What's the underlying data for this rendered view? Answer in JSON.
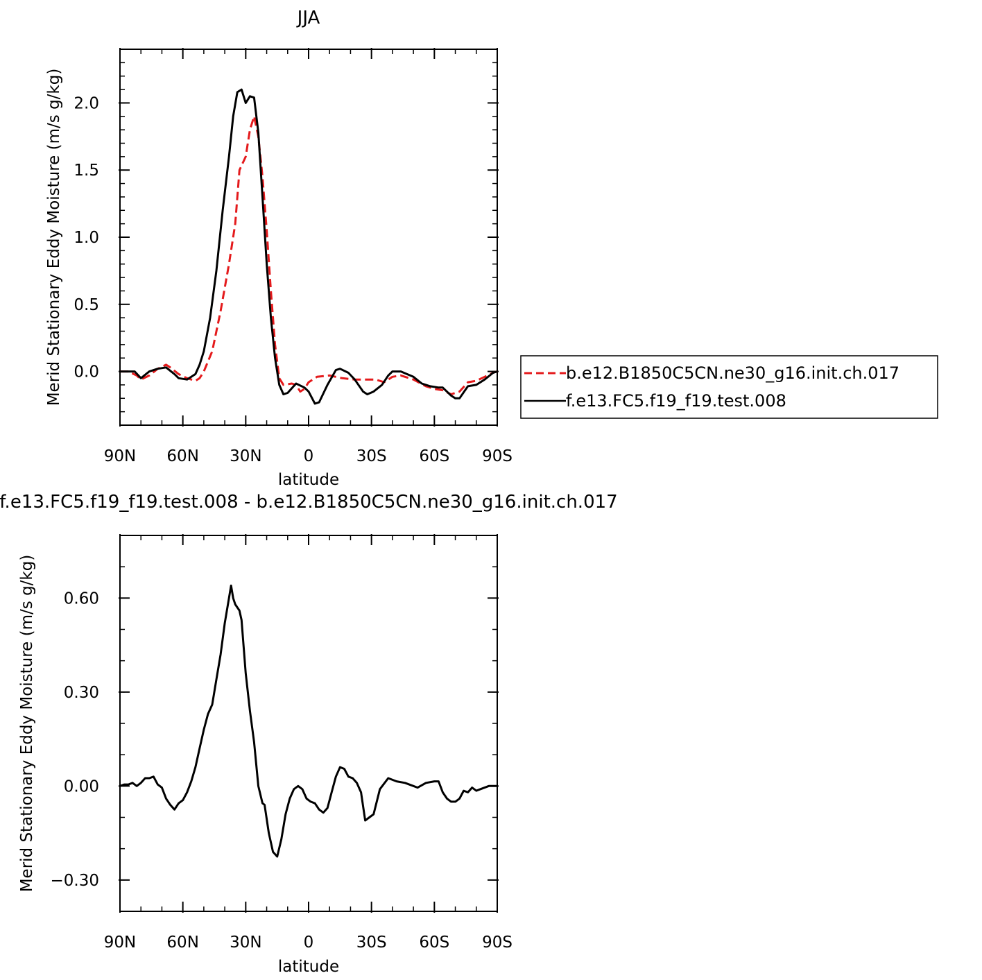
{
  "chart_data": [
    {
      "type": "line",
      "title": "JJA",
      "xlabel": "latitude",
      "ylabel": "Merid Stationary Eddy Moisture (m/s g/kg)",
      "xlim": [
        90,
        -90
      ],
      "ylim": [
        -0.4,
        2.4
      ],
      "x_ticks": [
        {
          "value": 90,
          "label": "90N"
        },
        {
          "value": 60,
          "label": "60N"
        },
        {
          "value": 30,
          "label": "30N"
        },
        {
          "value": 0,
          "label": "0"
        },
        {
          "value": -30,
          "label": "30S"
        },
        {
          "value": -60,
          "label": "60S"
        },
        {
          "value": -90,
          "label": "90S"
        }
      ],
      "y_ticks": [
        {
          "value": 0.0,
          "label": "0.0"
        },
        {
          "value": 0.5,
          "label": "0.5"
        },
        {
          "value": 1.0,
          "label": "1.0"
        },
        {
          "value": 1.5,
          "label": "1.5"
        },
        {
          "value": 2.0,
          "label": "2.0"
        }
      ],
      "legend": {
        "placement": "right",
        "entries": [
          {
            "name": "b.e12.B1850C5CN.ne30_g16.init.ch.017",
            "color": "#e41a1c",
            "dash": "dashed"
          },
          {
            "name": "f.e13.FC5.f19_f19.test.008",
            "color": "#000000",
            "dash": "solid"
          }
        ]
      },
      "series": [
        {
          "name": "b.e12.B1850C5CN.ne30_g16.init.ch.017",
          "color": "#e41a1c",
          "dash": "dashed",
          "points": [
            [
              90,
              0
            ],
            [
              86,
              0
            ],
            [
              82,
              -0.03
            ],
            [
              80,
              -0.06
            ],
            [
              76,
              -0.03
            ],
            [
              72,
              0.02
            ],
            [
              68,
              0.05
            ],
            [
              66,
              0.03
            ],
            [
              62,
              -0.02
            ],
            [
              58,
              -0.05
            ],
            [
              54,
              -0.07
            ],
            [
              52,
              -0.05
            ],
            [
              50,
              0
            ],
            [
              46,
              0.15
            ],
            [
              42,
              0.45
            ],
            [
              38,
              0.8
            ],
            [
              35,
              1.1
            ],
            [
              33,
              1.5
            ],
            [
              30,
              1.6
            ],
            [
              28,
              1.8
            ],
            [
              26,
              1.9
            ],
            [
              24,
              1.75
            ],
            [
              22,
              1.45
            ],
            [
              20,
              1.05
            ],
            [
              18,
              0.6
            ],
            [
              16,
              0.2
            ],
            [
              14,
              -0.05
            ],
            [
              12,
              -0.1
            ],
            [
              8,
              -0.09
            ],
            [
              6,
              -0.1
            ],
            [
              4,
              -0.15
            ],
            [
              2,
              -0.13
            ],
            [
              0,
              -0.08
            ],
            [
              -4,
              -0.04
            ],
            [
              -10,
              -0.03
            ],
            [
              -16,
              -0.05
            ],
            [
              -22,
              -0.06
            ],
            [
              -26,
              -0.06
            ],
            [
              -32,
              -0.06
            ],
            [
              -36,
              -0.08
            ],
            [
              -40,
              -0.04
            ],
            [
              -44,
              -0.03
            ],
            [
              -50,
              -0.06
            ],
            [
              -56,
              -0.11
            ],
            [
              -60,
              -0.13
            ],
            [
              -64,
              -0.14
            ],
            [
              -68,
              -0.17
            ],
            [
              -72,
              -0.15
            ],
            [
              -76,
              -0.08
            ],
            [
              -80,
              -0.07
            ],
            [
              -84,
              -0.04
            ],
            [
              -88,
              -0.01
            ],
            [
              -90,
              0
            ]
          ]
        },
        {
          "name": "f.e13.FC5.f19_f19.test.008",
          "color": "#000000",
          "dash": "solid",
          "points": [
            [
              90,
              0
            ],
            [
              86,
              0
            ],
            [
              83,
              0
            ],
            [
              80,
              -0.05
            ],
            [
              76,
              0
            ],
            [
              72,
              0.02
            ],
            [
              68,
              0.03
            ],
            [
              64,
              -0.02
            ],
            [
              62,
              -0.05
            ],
            [
              58,
              -0.06
            ],
            [
              54,
              -0.02
            ],
            [
              52,
              0.05
            ],
            [
              50,
              0.15
            ],
            [
              47,
              0.4
            ],
            [
              44,
              0.75
            ],
            [
              41,
              1.2
            ],
            [
              38,
              1.6
            ],
            [
              36,
              1.9
            ],
            [
              34,
              2.08
            ],
            [
              32,
              2.1
            ],
            [
              30,
              2.0
            ],
            [
              28,
              2.05
            ],
            [
              26,
              2.04
            ],
            [
              24,
              1.78
            ],
            [
              22,
              1.3
            ],
            [
              20,
              0.8
            ],
            [
              18,
              0.4
            ],
            [
              16,
              0.1
            ],
            [
              14,
              -0.1
            ],
            [
              12,
              -0.17
            ],
            [
              10,
              -0.16
            ],
            [
              6,
              -0.09
            ],
            [
              2,
              -0.12
            ],
            [
              0,
              -0.15
            ],
            [
              -3,
              -0.24
            ],
            [
              -5,
              -0.23
            ],
            [
              -9,
              -0.1
            ],
            [
              -13,
              0.01
            ],
            [
              -15,
              0.02
            ],
            [
              -19,
              -0.01
            ],
            [
              -22,
              -0.06
            ],
            [
              -26,
              -0.15
            ],
            [
              -28,
              -0.17
            ],
            [
              -31,
              -0.15
            ],
            [
              -35,
              -0.1
            ],
            [
              -38,
              -0.03
            ],
            [
              -40,
              0
            ],
            [
              -44,
              0
            ],
            [
              -50,
              -0.04
            ],
            [
              -54,
              -0.09
            ],
            [
              -58,
              -0.11
            ],
            [
              -62,
              -0.12
            ],
            [
              -64,
              -0.12
            ],
            [
              -68,
              -0.18
            ],
            [
              -70,
              -0.2
            ],
            [
              -72,
              -0.2
            ],
            [
              -76,
              -0.11
            ],
            [
              -80,
              -0.1
            ],
            [
              -84,
              -0.06
            ],
            [
              -88,
              -0.01
            ],
            [
              -90,
              0
            ]
          ]
        }
      ]
    },
    {
      "type": "line",
      "title": "f.e13.FC5.f19_f19.test.008 - b.e12.B1850C5CN.ne30_g16.init.ch.017",
      "xlabel": "latitude",
      "ylabel": "Merid Stationary Eddy Moisture (m/s g/kg)",
      "xlim": [
        90,
        -90
      ],
      "ylim": [
        -0.4,
        0.8
      ],
      "x_ticks": [
        {
          "value": 90,
          "label": "90N"
        },
        {
          "value": 60,
          "label": "60N"
        },
        {
          "value": 30,
          "label": "30N"
        },
        {
          "value": 0,
          "label": "0"
        },
        {
          "value": -30,
          "label": "30S"
        },
        {
          "value": -60,
          "label": "60S"
        },
        {
          "value": -90,
          "label": "90S"
        }
      ],
      "y_ticks": [
        {
          "value": -0.3,
          "label": "−0.30"
        },
        {
          "value": 0.0,
          "label": "0.00"
        },
        {
          "value": 0.3,
          "label": "0.30"
        },
        {
          "value": 0.6,
          "label": "0.60"
        }
      ],
      "series": [
        {
          "color": "#000000",
          "dash": "solid",
          "points": [
            [
              90,
              0
            ],
            [
              88,
              0.005
            ],
            [
              86,
              0.005
            ],
            [
              84,
              0.01
            ],
            [
              82,
              0
            ],
            [
              80,
              0.01
            ],
            [
              78,
              0.025
            ],
            [
              76,
              0.025
            ],
            [
              74,
              0.03
            ],
            [
              72,
              0.005
            ],
            [
              70,
              -0.005
            ],
            [
              68,
              -0.04
            ],
            [
              66,
              -0.06
            ],
            [
              64,
              -0.075
            ],
            [
              62,
              -0.055
            ],
            [
              60,
              -0.045
            ],
            [
              58,
              -0.02
            ],
            [
              56,
              0.015
            ],
            [
              54,
              0.06
            ],
            [
              52,
              0.12
            ],
            [
              50,
              0.18
            ],
            [
              48,
              0.23
            ],
            [
              46,
              0.26
            ],
            [
              44,
              0.34
            ],
            [
              42,
              0.42
            ],
            [
              40,
              0.52
            ],
            [
              38,
              0.6
            ],
            [
              37,
              0.64
            ],
            [
              36,
              0.6
            ],
            [
              35,
              0.58
            ],
            [
              33,
              0.56
            ],
            [
              32,
              0.53
            ],
            [
              30,
              0.36
            ],
            [
              28,
              0.24
            ],
            [
              26,
              0.14
            ],
            [
              24,
              0
            ],
            [
              22,
              -0.055
            ],
            [
              21,
              -0.06
            ],
            [
              19,
              -0.15
            ],
            [
              17,
              -0.21
            ],
            [
              15,
              -0.225
            ],
            [
              13,
              -0.17
            ],
            [
              11,
              -0.09
            ],
            [
              9,
              -0.04
            ],
            [
              7,
              -0.01
            ],
            [
              5,
              0
            ],
            [
              3,
              -0.01
            ],
            [
              1,
              -0.04
            ],
            [
              -1,
              -0.05
            ],
            [
              -3,
              -0.055
            ],
            [
              -5,
              -0.075
            ],
            [
              -7,
              -0.085
            ],
            [
              -9,
              -0.07
            ],
            [
              -11,
              -0.02
            ],
            [
              -13,
              0.03
            ],
            [
              -15,
              0.06
            ],
            [
              -17,
              0.055
            ],
            [
              -19,
              0.03
            ],
            [
              -21,
              0.025
            ],
            [
              -23,
              0.01
            ],
            [
              -25,
              -0.02
            ],
            [
              -27,
              -0.11
            ],
            [
              -29,
              -0.1
            ],
            [
              -31,
              -0.09
            ],
            [
              -34,
              -0.01
            ],
            [
              -38,
              0.025
            ],
            [
              -42,
              0.015
            ],
            [
              -46,
              0.01
            ],
            [
              -50,
              0
            ],
            [
              -52,
              -0.005
            ],
            [
              -56,
              0.01
            ],
            [
              -60,
              0.015
            ],
            [
              -62,
              0.015
            ],
            [
              -64,
              -0.02
            ],
            [
              -66,
              -0.04
            ],
            [
              -68,
              -0.05
            ],
            [
              -70,
              -0.05
            ],
            [
              -72,
              -0.04
            ],
            [
              -74,
              -0.015
            ],
            [
              -76,
              -0.02
            ],
            [
              -78,
              -0.005
            ],
            [
              -80,
              -0.015
            ],
            [
              -82,
              -0.01
            ],
            [
              -86,
              0
            ],
            [
              -90,
              0
            ]
          ]
        }
      ]
    }
  ]
}
